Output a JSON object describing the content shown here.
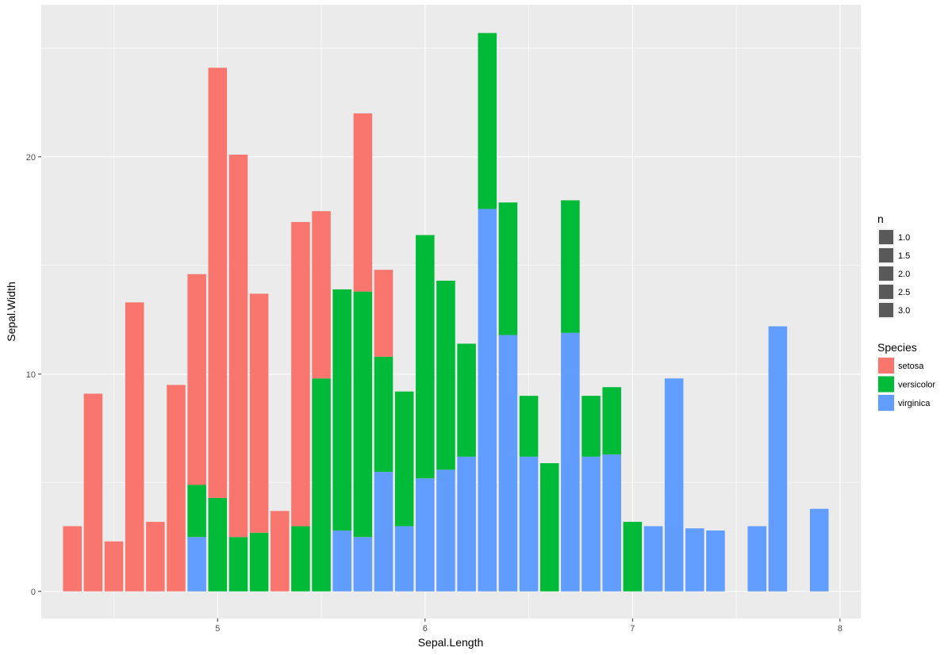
{
  "chart_data": {
    "type": "bar",
    "stacked": true,
    "xlabel": "Sepal.Length",
    "ylabel": "Sepal.Width",
    "xlim": [
      4.15,
      8.1
    ],
    "ylim": [
      -1.25,
      27
    ],
    "x_ticks": [
      5,
      6,
      7,
      8
    ],
    "y_ticks": [
      0,
      10,
      20
    ],
    "grid": true,
    "background": "#ebebeb",
    "bar_width": 0.09,
    "legend_placement": "right",
    "size_legend": {
      "title": "n",
      "labels": [
        "1.0",
        "1.5",
        "2.0",
        "2.5",
        "3.0"
      ]
    },
    "fill_legend": {
      "title": "Species",
      "labels": [
        "setosa",
        "versicolor",
        "virginica"
      ]
    },
    "series": [
      {
        "name": "setosa",
        "color": "#f8766d",
        "points": [
          [
            4.3,
            3.0
          ],
          [
            4.4,
            9.1
          ],
          [
            4.5,
            2.3
          ],
          [
            4.6,
            13.3
          ],
          [
            4.7,
            3.2
          ],
          [
            4.8,
            9.5
          ],
          [
            4.9,
            9.7
          ],
          [
            5.0,
            19.8
          ],
          [
            5.1,
            17.6
          ],
          [
            5.2,
            11.0
          ],
          [
            5.3,
            3.7
          ],
          [
            5.4,
            14.0
          ],
          [
            5.5,
            7.7
          ],
          [
            5.7,
            8.2
          ],
          [
            5.8,
            4.0
          ]
        ]
      },
      {
        "name": "versicolor",
        "color": "#00ba38",
        "points": [
          [
            4.9,
            2.4
          ],
          [
            5.0,
            4.3
          ],
          [
            5.1,
            2.5
          ],
          [
            5.2,
            2.7
          ],
          [
            5.4,
            3.0
          ],
          [
            5.5,
            9.8
          ],
          [
            5.6,
            11.1
          ],
          [
            5.7,
            11.3
          ],
          [
            5.8,
            5.3
          ],
          [
            5.9,
            6.2
          ],
          [
            6.0,
            11.2
          ],
          [
            6.1,
            8.7
          ],
          [
            6.2,
            5.2
          ],
          [
            6.3,
            8.1
          ],
          [
            6.4,
            6.1
          ],
          [
            6.5,
            2.8
          ],
          [
            6.6,
            5.9
          ],
          [
            6.7,
            6.1
          ],
          [
            6.8,
            2.8
          ],
          [
            6.9,
            3.1
          ],
          [
            7.0,
            3.2
          ]
        ]
      },
      {
        "name": "virginica",
        "color": "#619cff",
        "points": [
          [
            4.9,
            2.5
          ],
          [
            5.6,
            2.8
          ],
          [
            5.7,
            2.5
          ],
          [
            5.8,
            5.5
          ],
          [
            5.9,
            3.0
          ],
          [
            6.0,
            5.2
          ],
          [
            6.1,
            5.6
          ],
          [
            6.2,
            6.2
          ],
          [
            6.3,
            17.6
          ],
          [
            6.4,
            11.8
          ],
          [
            6.5,
            6.2
          ],
          [
            6.7,
            11.9
          ],
          [
            6.8,
            6.2
          ],
          [
            6.9,
            6.3
          ],
          [
            7.1,
            3.0
          ],
          [
            7.2,
            9.8
          ],
          [
            7.3,
            2.9
          ],
          [
            7.4,
            2.8
          ],
          [
            7.6,
            3.0
          ],
          [
            7.7,
            12.2
          ],
          [
            7.9,
            3.8
          ]
        ]
      }
    ]
  }
}
